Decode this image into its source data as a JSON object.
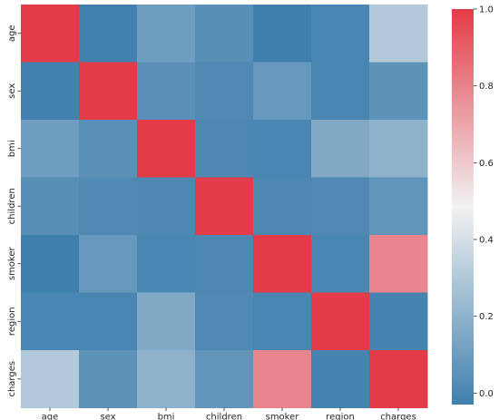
{
  "chart_data": {
    "type": "heatmap",
    "rows": [
      "age",
      "sex",
      "bmi",
      "children",
      "smoker",
      "region",
      "charges"
    ],
    "columns": [
      "age",
      "sex",
      "bmi",
      "children",
      "smoker",
      "region",
      "charges"
    ],
    "values": [
      [
        1.0,
        -0.02,
        0.11,
        0.04,
        -0.03,
        0.0,
        0.3
      ],
      [
        -0.02,
        1.0,
        0.05,
        0.02,
        0.08,
        0.0,
        0.06
      ],
      [
        0.11,
        0.05,
        1.0,
        0.01,
        0.0,
        0.16,
        0.2
      ],
      [
        0.04,
        0.02,
        0.01,
        1.0,
        0.01,
        0.02,
        0.07
      ],
      [
        -0.03,
        0.08,
        0.0,
        0.01,
        1.0,
        -0.0,
        0.79
      ],
      [
        0.0,
        0.0,
        0.16,
        0.02,
        -0.0,
        1.0,
        -0.01
      ],
      [
        0.3,
        0.06,
        0.2,
        0.07,
        0.79,
        -0.01,
        1.0
      ]
    ],
    "colorbar": {
      "ticks": [
        "0.0",
        "0.2",
        "0.4",
        "0.6",
        "0.8",
        "1.0"
      ],
      "tick_values": [
        0.0,
        0.2,
        0.4,
        0.6,
        0.8,
        1.0
      ],
      "range": [
        -0.03,
        1.0
      ]
    },
    "colors": {
      "low": "#3f7fad",
      "mid": "#f2f2f2",
      "high": "#e33b47"
    }
  }
}
